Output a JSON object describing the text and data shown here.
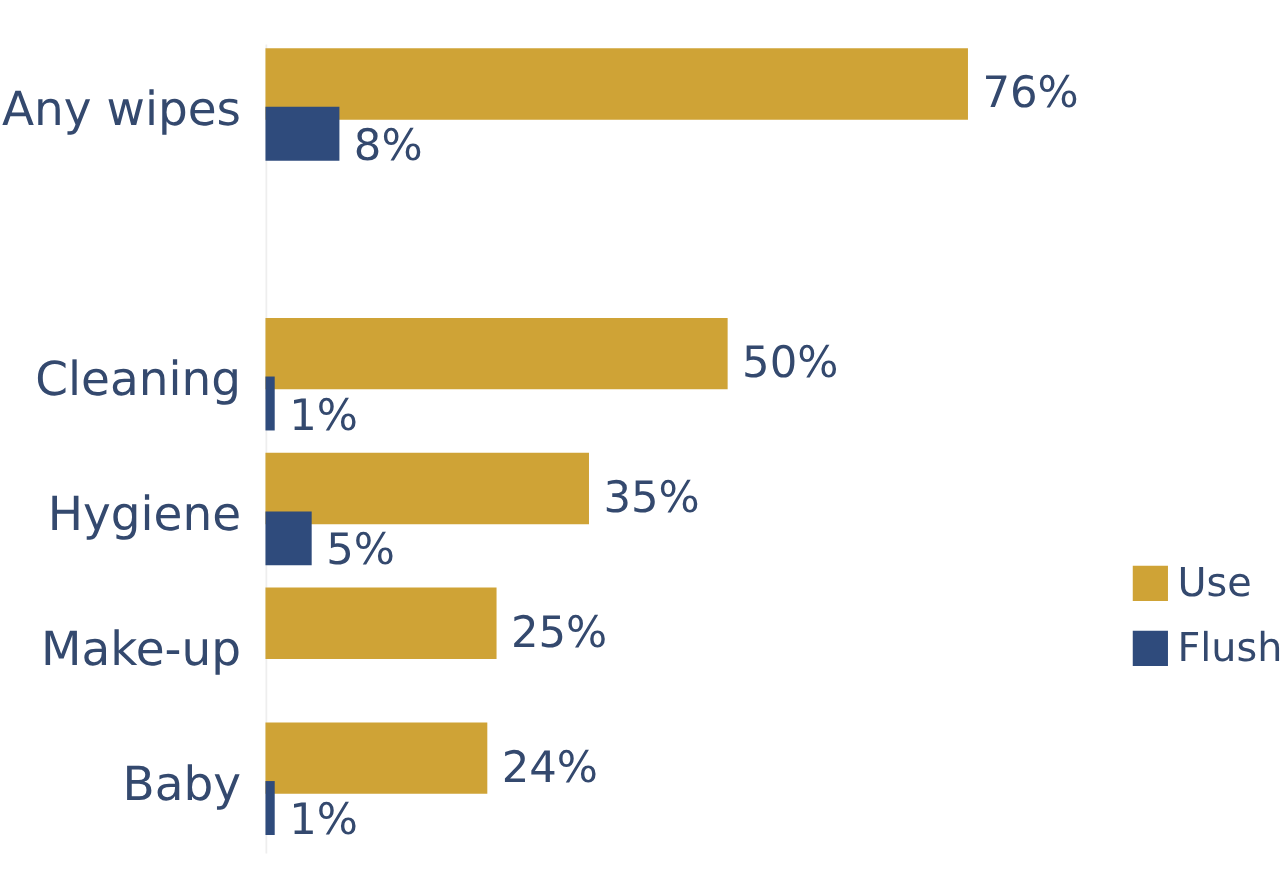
{
  "chart_data": {
    "type": "bar",
    "orientation": "horizontal",
    "categories": [
      "Any wipes",
      null,
      "Cleaning",
      "Hygiene",
      "Make-up",
      "Baby"
    ],
    "series": [
      {
        "name": "Use",
        "color": "#cfa336",
        "values": [
          76,
          null,
          50,
          35,
          25,
          24
        ],
        "value_labels": [
          "76%",
          null,
          "50%",
          "35%",
          "25%",
          "24%"
        ]
      },
      {
        "name": "Flush",
        "color": "#2f4b7c",
        "values": [
          8,
          null,
          1,
          5,
          null,
          1
        ],
        "value_labels": [
          "8%",
          null,
          "1%",
          "5%",
          null,
          "1%"
        ]
      }
    ],
    "legend": "bottom right"
  }
}
